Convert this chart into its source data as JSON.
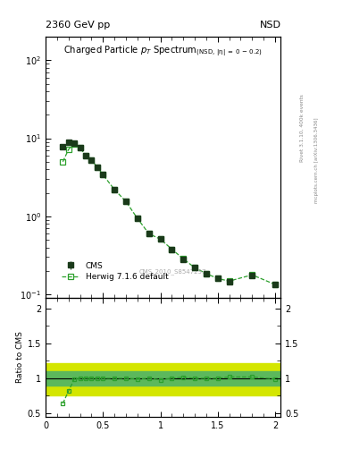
{
  "title_top_left": "2360 GeV pp",
  "title_top_right": "NSD",
  "watermark": "CMS_2010_S8547297",
  "right_label_top": "Rivet 3.1.10, 400k events",
  "right_label_bottom": "mcplots.cern.ch [arXiv:1306.3436]",
  "cms_x": [
    0.15,
    0.2,
    0.25,
    0.3,
    0.35,
    0.4,
    0.45,
    0.5,
    0.6,
    0.7,
    0.8,
    0.9,
    1.0,
    1.1,
    1.2,
    1.3,
    1.4,
    1.5,
    1.6,
    1.8,
    2.0
  ],
  "cms_y": [
    7.8,
    8.8,
    8.6,
    7.5,
    6.0,
    5.2,
    4.3,
    3.4,
    2.2,
    1.55,
    0.95,
    0.6,
    0.52,
    0.38,
    0.28,
    0.22,
    0.185,
    0.16,
    0.145,
    0.175,
    0.135
  ],
  "cms_yerr": [
    0.4,
    0.4,
    0.4,
    0.3,
    0.25,
    0.2,
    0.15,
    0.12,
    0.08,
    0.055,
    0.035,
    0.022,
    0.018,
    0.014,
    0.01,
    0.008,
    0.007,
    0.006,
    0.005,
    0.006,
    0.005
  ],
  "hw_x": [
    0.15,
    0.2,
    0.25,
    0.3,
    0.35,
    0.4,
    0.45,
    0.5,
    0.6,
    0.7,
    0.8,
    0.9,
    1.0,
    1.1,
    1.2,
    1.3,
    1.4,
    1.5,
    1.6,
    1.8,
    2.0
  ],
  "hw_y": [
    5.0,
    7.2,
    8.5,
    7.5,
    6.0,
    5.2,
    4.3,
    3.4,
    2.2,
    1.55,
    0.94,
    0.6,
    0.51,
    0.38,
    0.285,
    0.22,
    0.185,
    0.16,
    0.148,
    0.178,
    0.134
  ],
  "ratio_x": [
    0.15,
    0.2,
    0.25,
    0.3,
    0.35,
    0.4,
    0.45,
    0.5,
    0.6,
    0.7,
    0.8,
    0.9,
    1.0,
    1.1,
    1.2,
    1.3,
    1.4,
    1.5,
    1.6,
    1.8,
    2.0
  ],
  "ratio_y": [
    0.64,
    0.82,
    0.99,
    1.0,
    1.0,
    1.0,
    1.0,
    1.0,
    1.0,
    1.0,
    0.99,
    1.0,
    0.98,
    1.0,
    1.018,
    1.0,
    1.0,
    1.0,
    1.02,
    1.02,
    0.99
  ],
  "band_green_ylow": 0.9,
  "band_green_yhigh": 1.1,
  "band_yellow_ylow": 0.75,
  "band_yellow_yhigh": 1.22,
  "color_cms": "#1a3a1a",
  "color_herwig": "#2ca02c",
  "color_band_green": "#5cb85c",
  "color_band_yellow": "#d4e600",
  "xlim": [
    0.0,
    2.05
  ],
  "ylim_main": [
    0.09,
    200
  ],
  "ylim_ratio": [
    0.45,
    2.15
  ],
  "yticks_ratio": [
    0.5,
    1.0,
    1.5,
    2.0
  ],
  "xticks": [
    0.0,
    0.5,
    1.0,
    1.5,
    2.0
  ]
}
